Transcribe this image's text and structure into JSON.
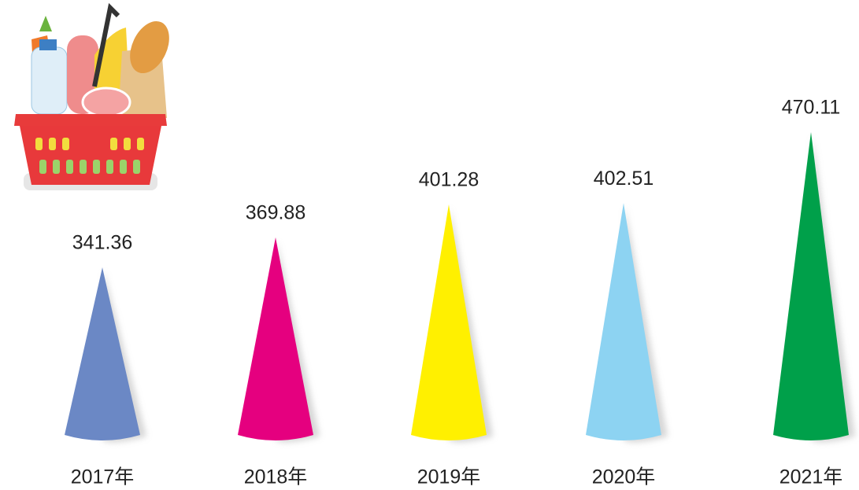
{
  "chart_data": {
    "type": "cone",
    "categories": [
      "2017年",
      "2018年",
      "2019年",
      "2020年",
      "2021年"
    ],
    "values": [
      341.36,
      369.88,
      401.28,
      402.51,
      470.11
    ],
    "colors": [
      "#6b88c5",
      "#e5007f",
      "#fff000",
      "#8dd3f2",
      "#00a04a"
    ]
  }
}
